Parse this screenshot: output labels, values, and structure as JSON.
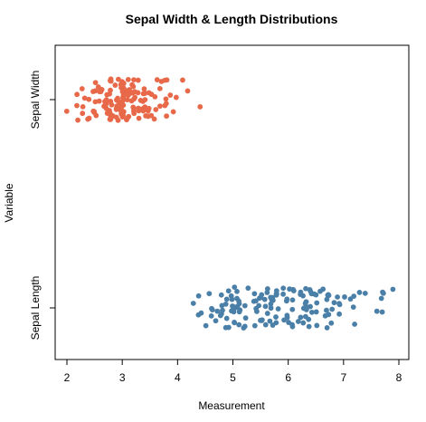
{
  "chart_data": {
    "type": "scatter",
    "title": "Sepal Width & Length Distributions",
    "xlabel": "Measurement",
    "ylabel": "Variable",
    "xlim": [
      2,
      8
    ],
    "x_ticks": [
      "2",
      "3",
      "4",
      "5",
      "6",
      "7",
      "8"
    ],
    "categories": [
      "Sepal Length",
      "Sepal Width"
    ],
    "grid": false,
    "legend": "none",
    "jitter": "vertical strip jitter within each category",
    "series": [
      {
        "category": "Sepal Width",
        "color": "#E8694A",
        "values": [
          3.5,
          3.0,
          3.2,
          3.1,
          3.6,
          3.9,
          3.4,
          3.4,
          2.9,
          3.1,
          3.7,
          3.4,
          3.0,
          3.0,
          4.0,
          4.4,
          3.9,
          3.5,
          3.8,
          3.8,
          3.4,
          3.7,
          3.6,
          3.3,
          3.4,
          3.0,
          3.4,
          3.5,
          3.4,
          3.2,
          3.1,
          3.4,
          4.1,
          4.2,
          3.1,
          3.2,
          3.5,
          3.6,
          3.0,
          3.4,
          3.5,
          2.3,
          3.2,
          3.5,
          3.8,
          3.0,
          3.8,
          3.2,
          3.7,
          3.3,
          3.2,
          3.2,
          3.1,
          2.3,
          2.8,
          2.8,
          3.3,
          2.4,
          2.9,
          2.7,
          2.0,
          3.0,
          2.2,
          2.9,
          2.9,
          3.1,
          3.0,
          2.7,
          2.2,
          2.5,
          3.2,
          2.8,
          2.5,
          2.8,
          2.9,
          3.0,
          2.8,
          3.0,
          2.9,
          2.6,
          2.4,
          2.4,
          2.7,
          2.7,
          3.0,
          3.4,
          3.1,
          2.3,
          3.0,
          2.5,
          2.6,
          3.0,
          2.6,
          2.3,
          2.7,
          3.0,
          2.9,
          2.9,
          2.5,
          2.8,
          3.3,
          2.7,
          3.0,
          2.9,
          3.0,
          3.0,
          2.5,
          2.9,
          2.5,
          3.6,
          3.2,
          2.7,
          3.0,
          2.5,
          2.8,
          3.2,
          3.0,
          3.8,
          2.6,
          2.2,
          3.2,
          2.8,
          2.8,
          2.7,
          3.3,
          3.2,
          2.8,
          3.0,
          2.8,
          3.0,
          2.8,
          3.8,
          2.8,
          2.8,
          2.6,
          3.0,
          3.4,
          3.1,
          3.0,
          3.1,
          3.1,
          3.1,
          2.7,
          3.2,
          3.3,
          3.0,
          2.5,
          3.0,
          3.4,
          3.0
        ]
      },
      {
        "category": "Sepal Length",
        "color": "#4A7FA8",
        "values": [
          5.1,
          4.9,
          4.7,
          4.6,
          5.0,
          5.4,
          4.6,
          5.0,
          4.4,
          4.9,
          5.4,
          4.8,
          4.8,
          4.3,
          5.8,
          5.7,
          5.4,
          5.1,
          5.7,
          5.1,
          5.4,
          5.1,
          4.6,
          5.1,
          4.8,
          5.0,
          5.0,
          5.2,
          5.2,
          4.7,
          4.8,
          5.4,
          5.2,
          5.5,
          4.9,
          5.0,
          5.5,
          4.9,
          4.4,
          5.1,
          5.0,
          4.5,
          4.4,
          5.0,
          5.1,
          4.8,
          5.1,
          4.6,
          5.3,
          5.0,
          7.0,
          6.4,
          6.9,
          5.5,
          6.5,
          5.7,
          6.3,
          4.9,
          6.6,
          5.2,
          5.0,
          5.9,
          6.0,
          6.1,
          5.6,
          6.7,
          5.6,
          5.8,
          6.2,
          5.6,
          5.9,
          6.1,
          6.3,
          6.1,
          6.4,
          6.6,
          6.8,
          6.7,
          6.0,
          5.7,
          5.5,
          5.5,
          5.8,
          6.0,
          5.4,
          6.0,
          6.7,
          6.3,
          5.6,
          5.5,
          5.5,
          6.1,
          5.8,
          5.0,
          5.6,
          5.7,
          5.7,
          6.2,
          5.1,
          5.7,
          6.3,
          5.8,
          7.1,
          6.3,
          6.5,
          7.6,
          4.9,
          7.3,
          6.7,
          7.2,
          6.5,
          6.4,
          6.8,
          5.7,
          5.8,
          6.4,
          6.5,
          7.7,
          7.7,
          6.0,
          6.9,
          5.6,
          7.7,
          6.3,
          6.7,
          7.2,
          6.2,
          6.1,
          6.4,
          7.2,
          7.4,
          7.9,
          6.4,
          6.3,
          6.1,
          7.7,
          6.3,
          6.4,
          6.0,
          6.9,
          6.7,
          6.9,
          5.8,
          6.8,
          6.7,
          6.7,
          6.3,
          6.5,
          6.2,
          5.9
        ]
      }
    ]
  }
}
